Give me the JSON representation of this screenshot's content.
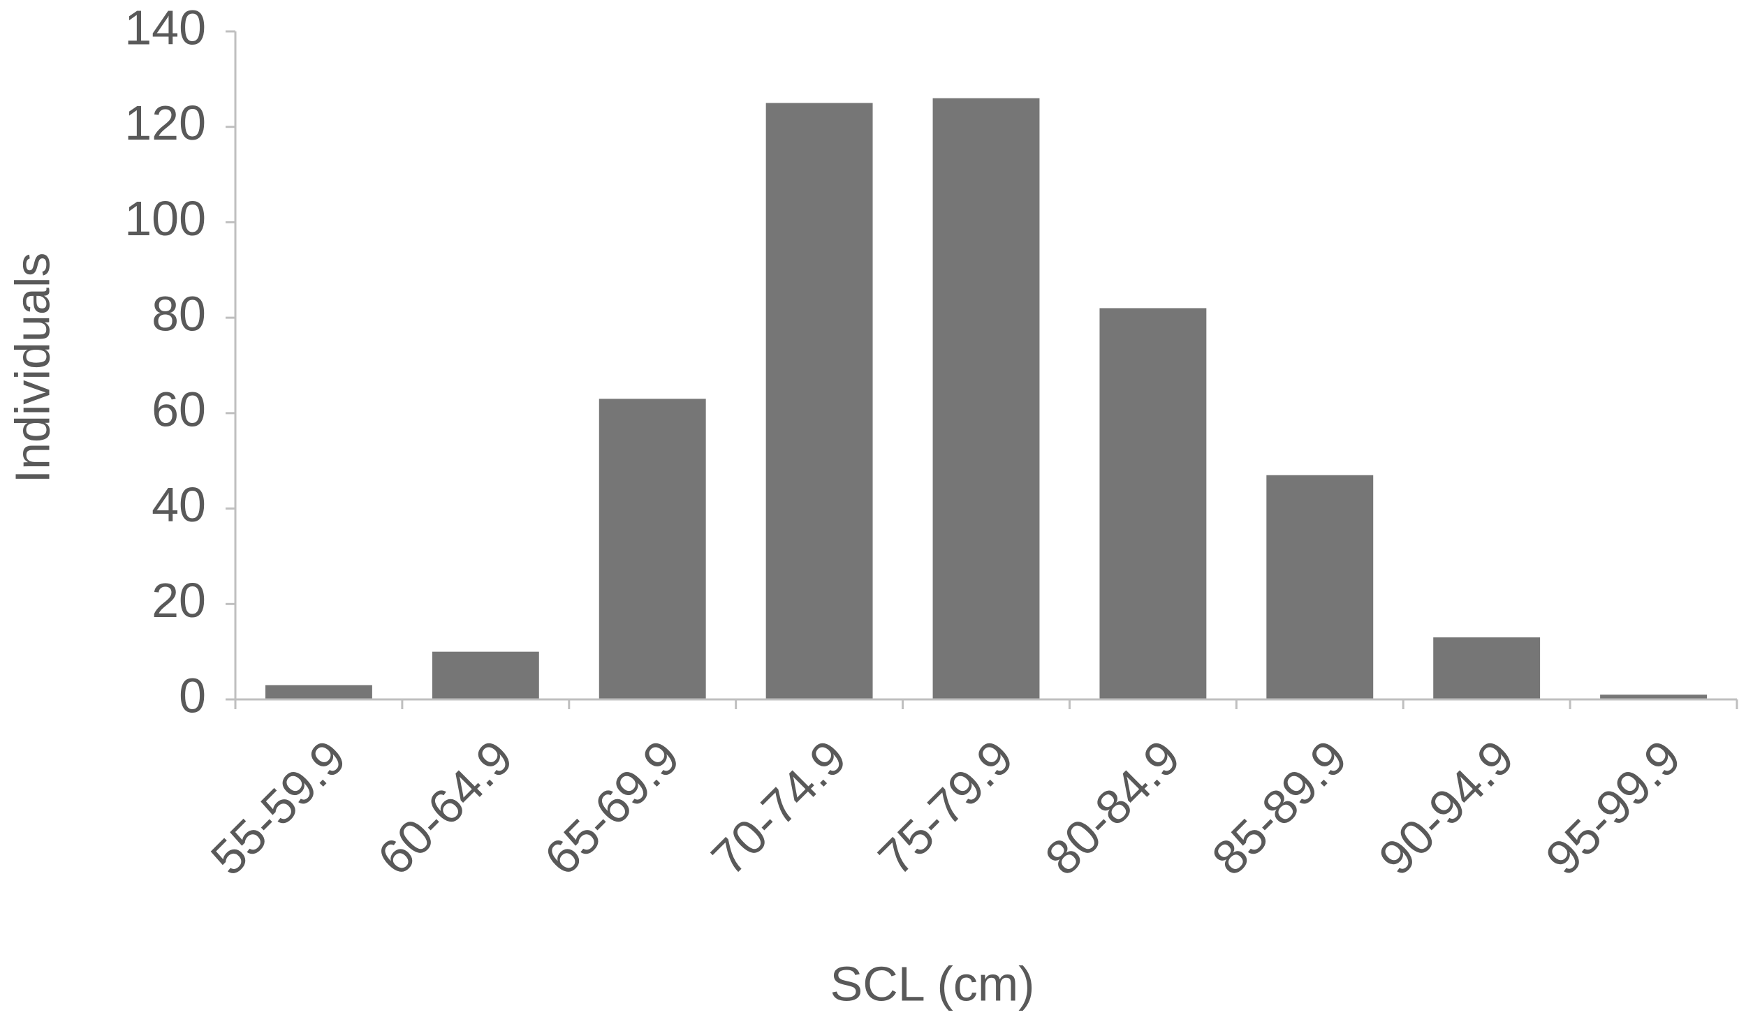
{
  "chart_data": {
    "type": "bar",
    "x_label": "SCL (cm)",
    "y_label": "Individuals",
    "categories": [
      "55-59.9",
      "60-64.9",
      "65-69.9",
      "70-74.9",
      "75-79.9",
      "80-84.9",
      "85-89.9",
      "90-94.9",
      "95-99.9"
    ],
    "values": [
      3,
      10,
      63,
      125,
      126,
      82,
      47,
      13,
      1
    ],
    "color": "#767676",
    "ylim": [
      0,
      140
    ],
    "yticks": [
      0,
      20,
      40,
      60,
      80,
      100,
      120,
      140
    ],
    "grid": false
  }
}
